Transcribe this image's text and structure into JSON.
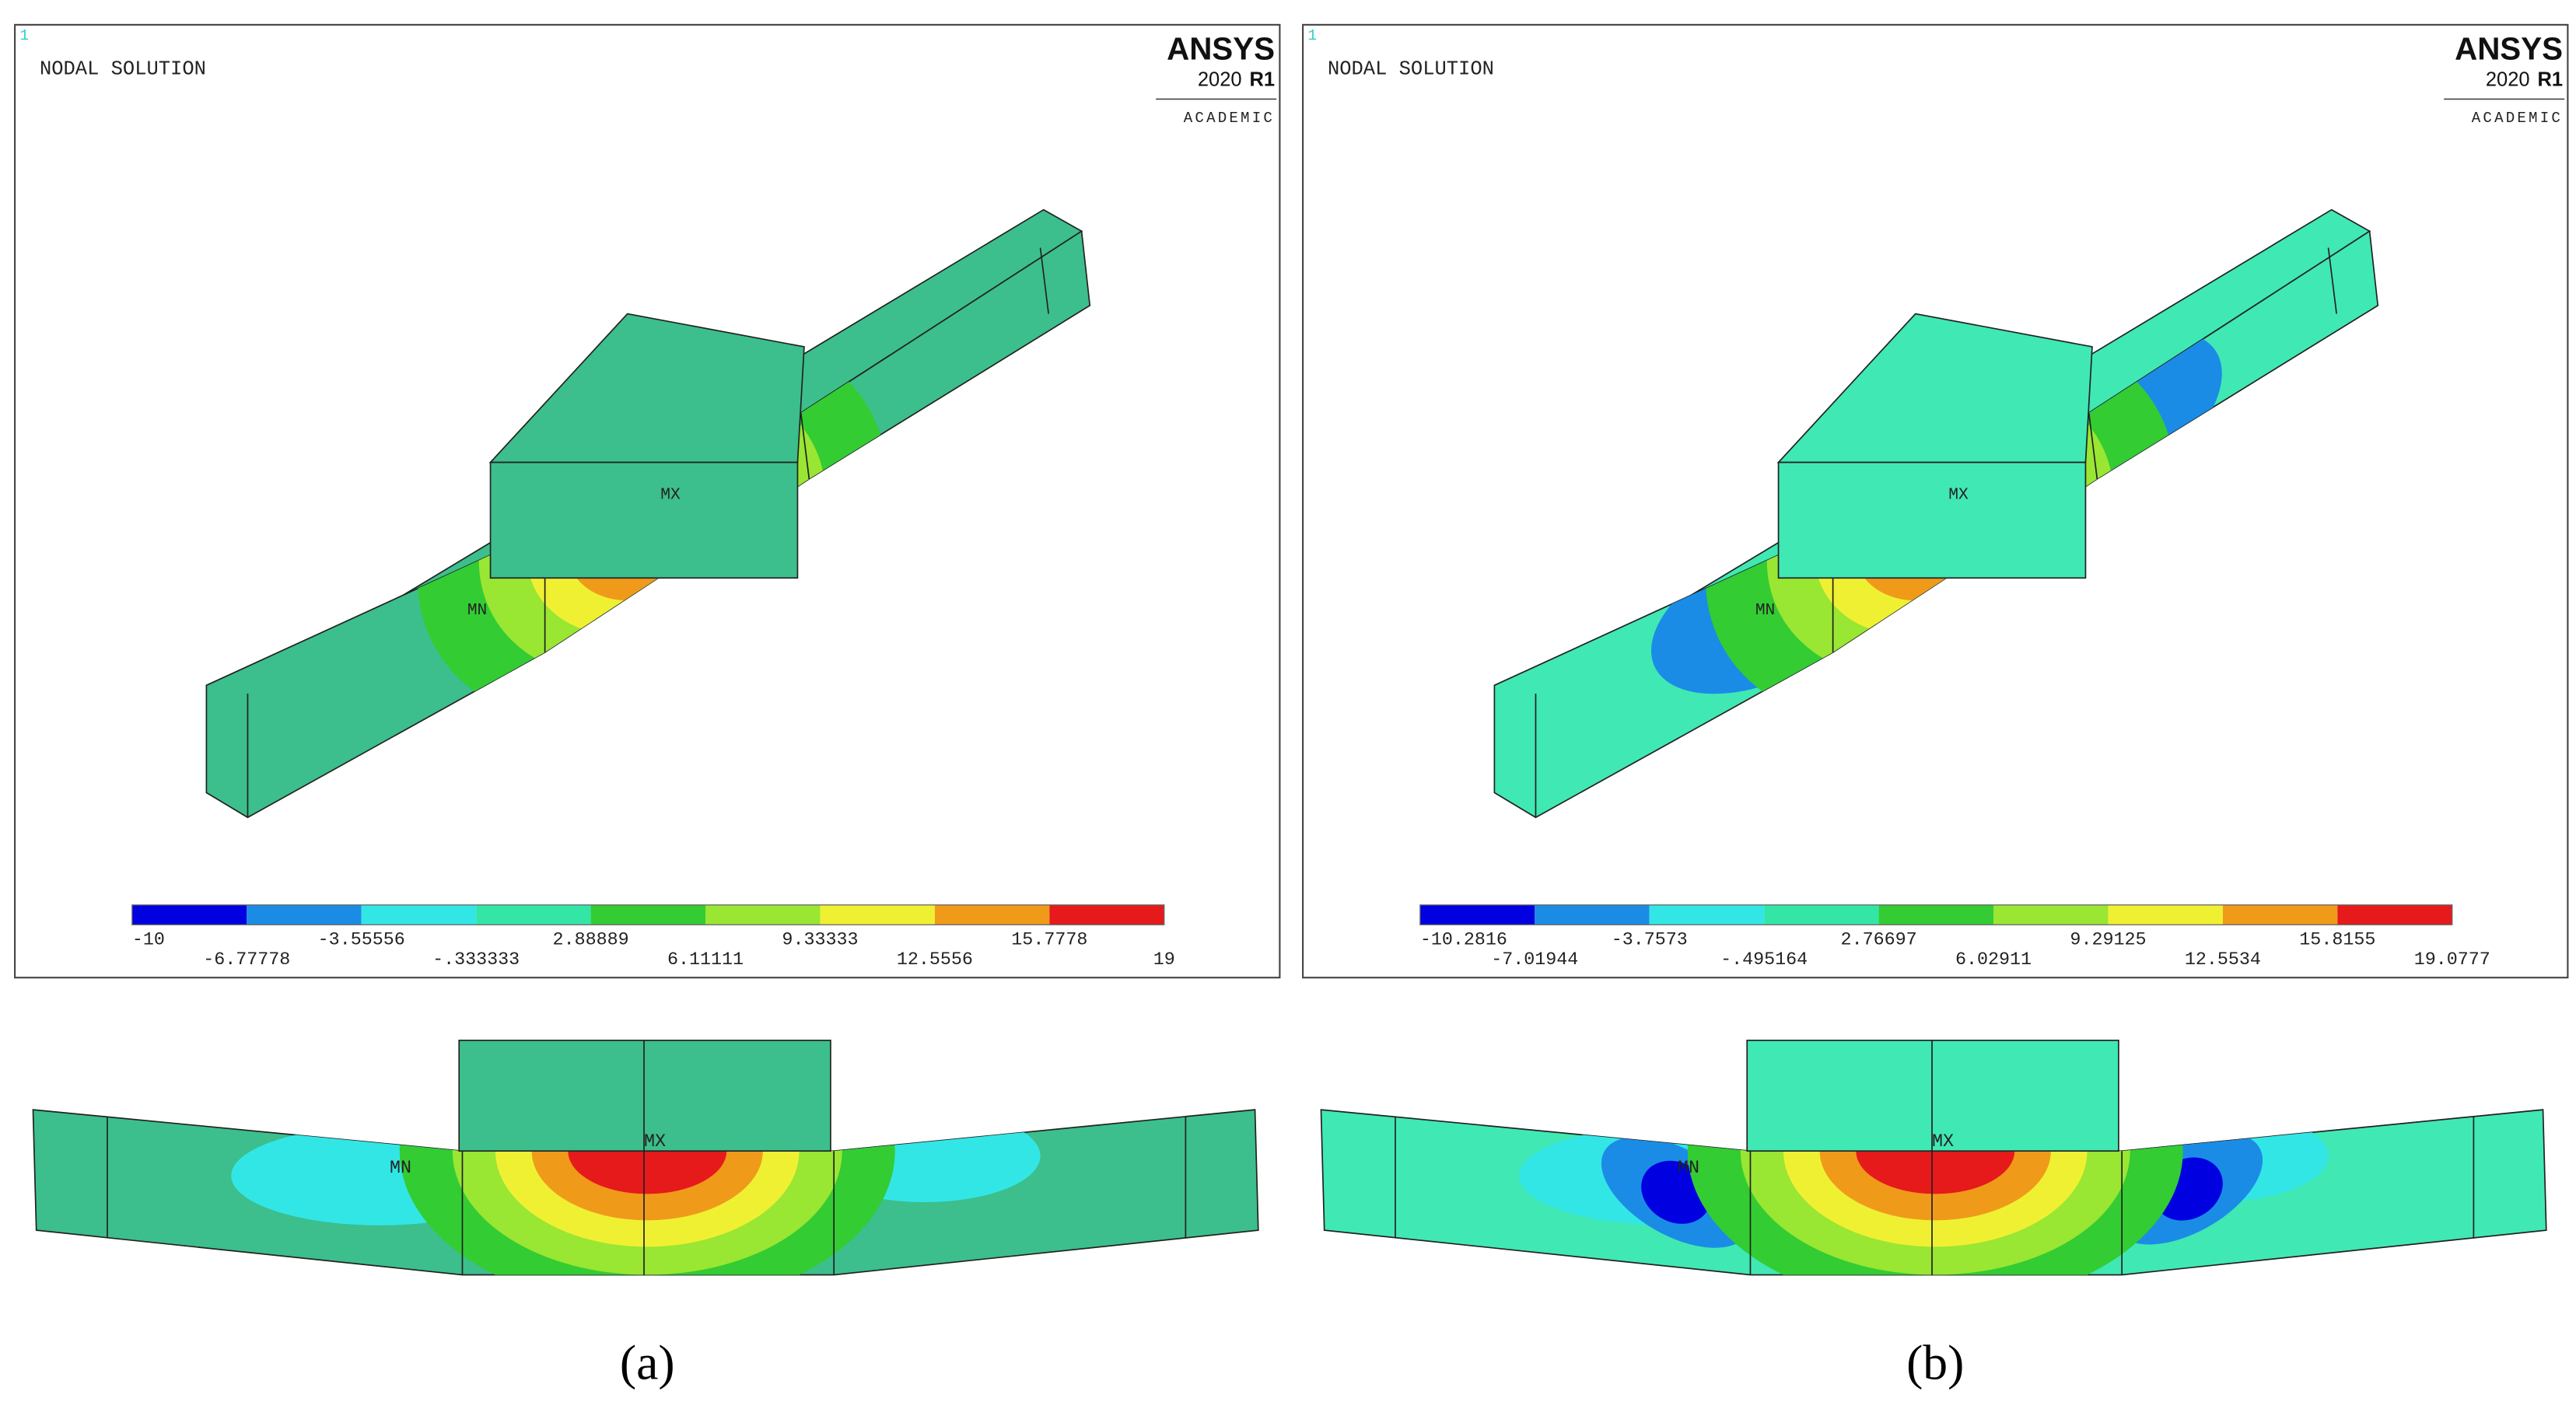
{
  "panels": [
    {
      "frame_number": "1",
      "header": "NODAL SOLUTION",
      "brand": "ANSYS",
      "version": "2020",
      "release": "R1",
      "edition": "ACADEMIC",
      "legend": [
        "-10",
        "-6.77778",
        "-3.55556",
        "-.333333",
        "2.88889",
        "6.11111",
        "9.33333",
        "12.5556",
        "15.7778",
        "19"
      ],
      "max_label": "MX",
      "min_label": "MN",
      "caption": "(a)"
    },
    {
      "frame_number": "1",
      "header": "NODAL SOLUTION",
      "brand": "ANSYS",
      "version": "2020",
      "release": "R1",
      "edition": "ACADEMIC",
      "legend": [
        "-10.2816",
        "-7.01944",
        "-3.7573",
        "-.495164",
        "2.76697",
        "6.02911",
        "9.29125",
        "12.5534",
        "15.8155",
        "19.0777"
      ],
      "max_label": "MX",
      "min_label": "MN",
      "caption": "(b)"
    }
  ]
}
